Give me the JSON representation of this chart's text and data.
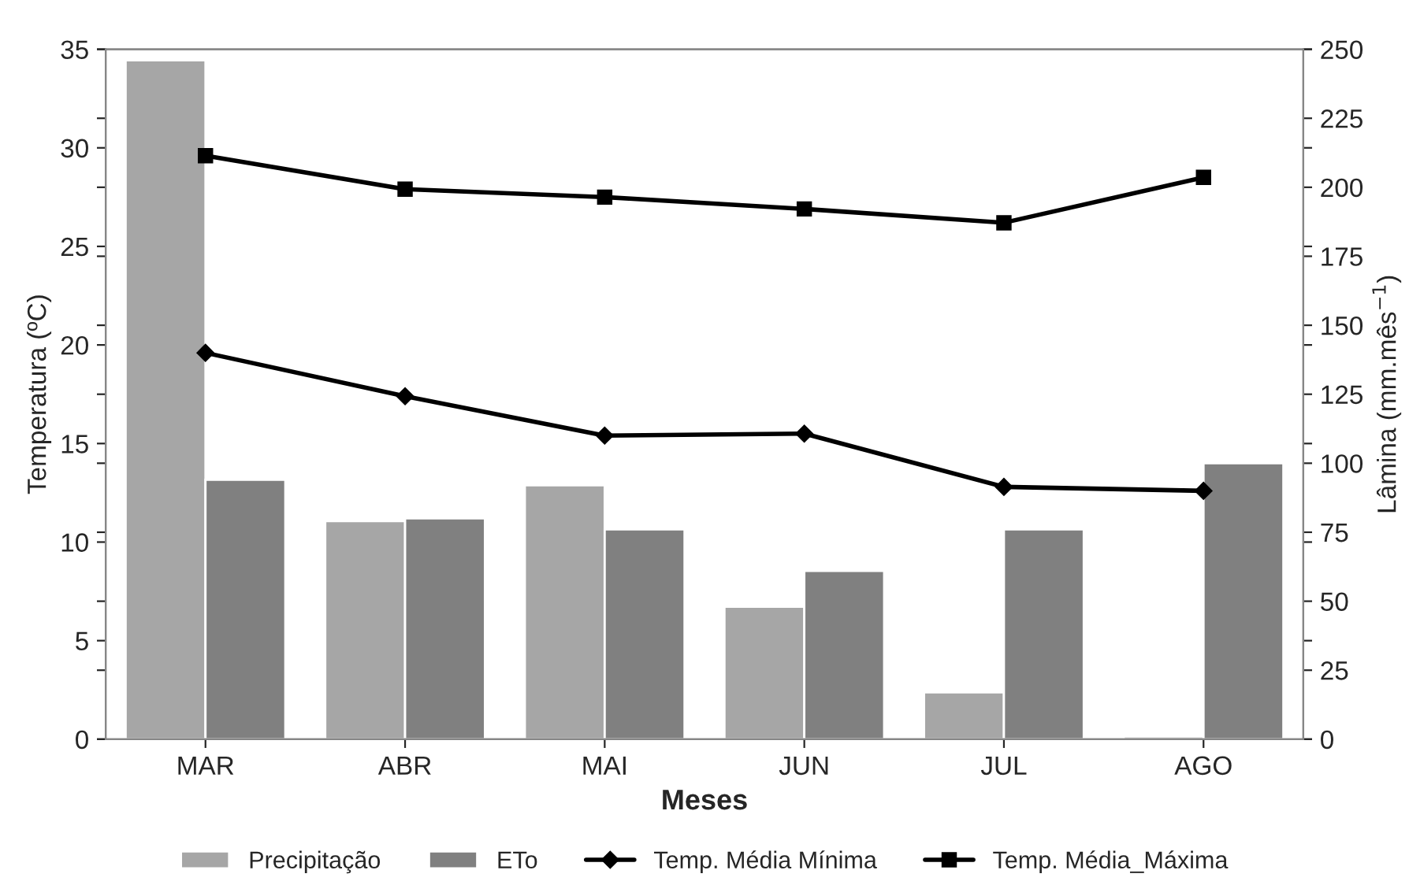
{
  "chart_data": {
    "type": "bar",
    "xlabel": "Meses",
    "ylabel": "Temperatura (ºC)",
    "y2label": "Lâmina (mm.mês$^{−1}$)",
    "categories": [
      "MAR",
      "ABR",
      "MAI",
      "JUN",
      "JUL",
      "AGO"
    ],
    "ylim": [
      0,
      35
    ],
    "yticks": [
      0,
      5,
      10,
      15,
      20,
      25,
      30,
      35
    ],
    "y2lim": [
      0,
      250
    ],
    "y2ticks": [
      0,
      25,
      50,
      75,
      100,
      125,
      150,
      175,
      200,
      225,
      250
    ],
    "legend": "bottom",
    "grid": false,
    "series": [
      {
        "name": "Precipitação",
        "axis": "y2",
        "color": "#a6a6a6",
        "values": [
          246,
          79,
          92,
          48,
          17,
          1
        ]
      },
      {
        "name": "ETo",
        "axis": "y2",
        "color": "#808080",
        "values": [
          94,
          80,
          76,
          61,
          76,
          100
        ]
      },
      {
        "name": "Temp. Média Mínima",
        "type": "line",
        "axis": "y",
        "color": "#000000",
        "marker": "diamond",
        "values": [
          19.6,
          17.4,
          15.4,
          15.5,
          12.8,
          12.6
        ]
      },
      {
        "name": "Temp. Média_Máxima",
        "type": "line",
        "axis": "y",
        "color": "#000000",
        "marker": "square",
        "values": [
          29.6,
          27.9,
          27.5,
          26.9,
          26.2,
          28.5
        ]
      }
    ]
  }
}
